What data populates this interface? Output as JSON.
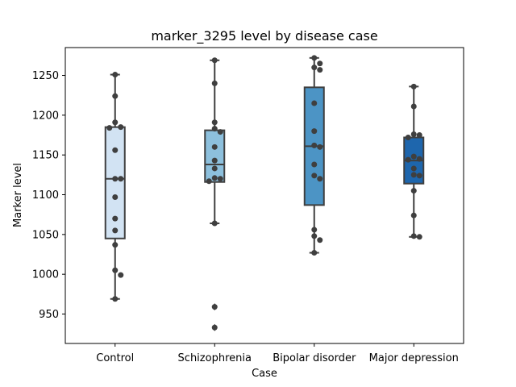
{
  "chart_data": {
    "type": "boxplot",
    "title": "marker_3295 level by disease case",
    "xlabel": "Case",
    "ylabel": "Marker level",
    "ylim": [
      913,
      1285
    ],
    "yticks": [
      950,
      1000,
      1050,
      1100,
      1150,
      1200,
      1250
    ],
    "grid": false,
    "legend": "none",
    "categories": [
      "Control",
      "Schizophrenia",
      "Bipolar disorder",
      "Major depression"
    ],
    "colors": [
      "#d2e3f3",
      "#8dc0dd",
      "#4c94c5",
      "#1e66ad"
    ],
    "boxes": [
      {
        "category": "Control",
        "whisker_low": 969,
        "q1": 1045,
        "median": 1120,
        "q3": 1185,
        "whisker_high": 1251,
        "outliers": []
      },
      {
        "category": "Schizophrenia",
        "whisker_low": 1064,
        "q1": 1116,
        "median": 1138,
        "q3": 1181,
        "whisker_high": 1269,
        "outliers": [
          959,
          933
        ]
      },
      {
        "category": "Bipolar disorder",
        "whisker_low": 1027,
        "q1": 1087,
        "median": 1161,
        "q3": 1235,
        "whisker_high": 1272,
        "outliers": []
      },
      {
        "category": "Major depression",
        "whisker_low": 1047,
        "q1": 1114,
        "median": 1143,
        "q3": 1172,
        "whisker_high": 1236,
        "outliers": []
      }
    ],
    "points": [
      {
        "category": "Control",
        "values": [
          1251,
          1224,
          1191,
          1185,
          1184,
          1156,
          1120,
          1120,
          1097,
          1070,
          1055,
          1037,
          1005,
          999,
          969
        ]
      },
      {
        "category": "Schizophrenia",
        "values": [
          1269,
          1240,
          1191,
          1183,
          1179,
          1160,
          1143,
          1133,
          1121,
          1120,
          1117,
          1064,
          959,
          933
        ]
      },
      {
        "category": "Bipolar disorder",
        "values": [
          1272,
          1265,
          1260,
          1257,
          1215,
          1180,
          1162,
          1160,
          1138,
          1124,
          1120,
          1056,
          1048,
          1043,
          1027
        ]
      },
      {
        "category": "Major depression",
        "values": [
          1236,
          1211,
          1176,
          1175,
          1172,
          1148,
          1145,
          1144,
          1133,
          1125,
          1124,
          1105,
          1074,
          1048,
          1047
        ]
      }
    ]
  }
}
